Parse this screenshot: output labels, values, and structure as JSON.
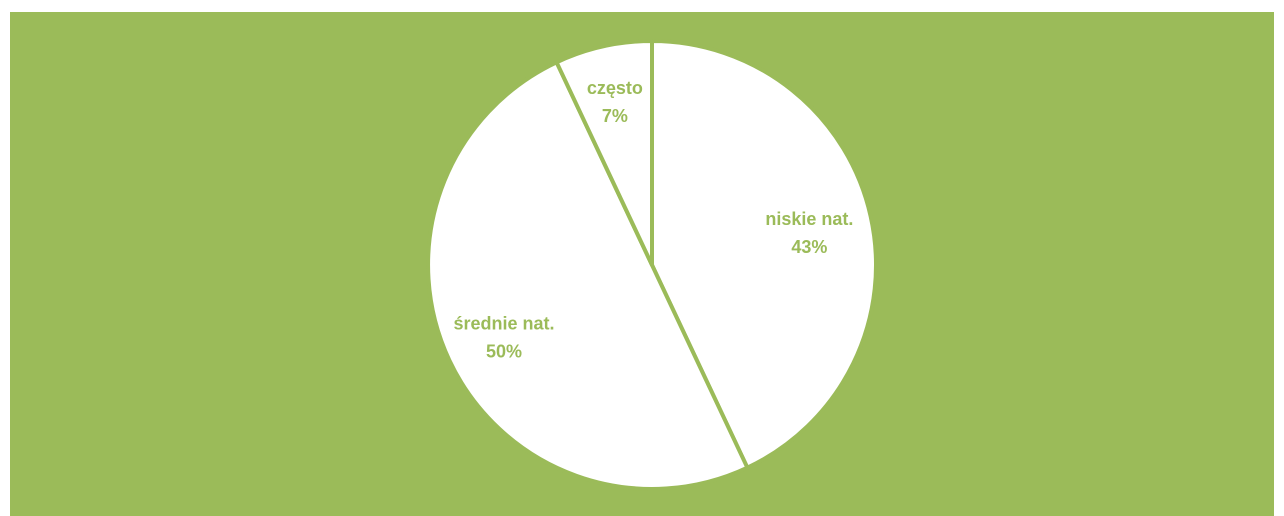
{
  "colors": {
    "background": "#9bbb59",
    "slice_fill": "#ffffff",
    "slice_border": "#9bbb59",
    "label_text": "#9bbb59"
  },
  "chart_data": {
    "type": "pie",
    "categories": [
      "niskie nat.",
      "średnie nat.",
      "często"
    ],
    "values": [
      43,
      50,
      7
    ],
    "value_labels": [
      "43%",
      "50%",
      "7%"
    ],
    "start_angle_deg": 0,
    "direction": "clockwise",
    "legend": "none"
  }
}
